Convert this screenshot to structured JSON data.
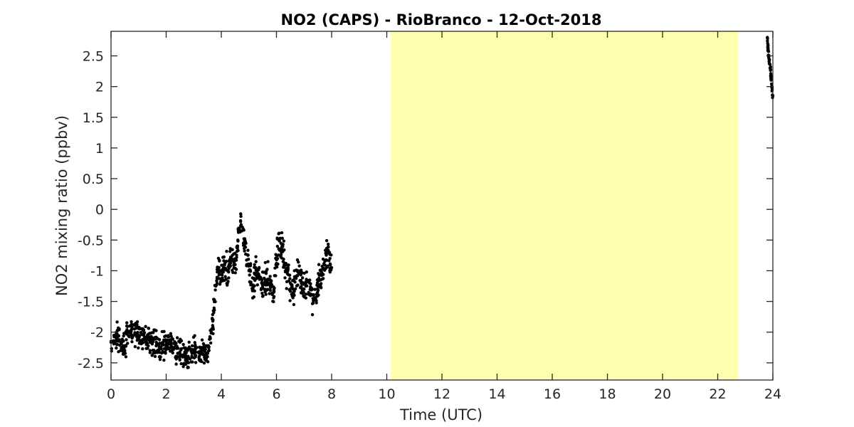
{
  "chart_data": {
    "type": "scatter",
    "title": "NO2 (CAPS) - RioBranco - 12-Oct-2018",
    "xlabel": "Time (UTC)",
    "ylabel": "NO2 mixing ratio (ppbv)",
    "xlim": [
      0,
      24
    ],
    "ylim": [
      -2.78,
      2.9
    ],
    "xticks": [
      0,
      2,
      4,
      6,
      8,
      10,
      12,
      14,
      16,
      18,
      20,
      22,
      24
    ],
    "yticks": [
      -2.5,
      -2,
      -1.5,
      -1,
      -0.5,
      0,
      0.5,
      1,
      1.5,
      2,
      2.5
    ],
    "xtick_labels": [
      "0",
      "2",
      "4",
      "6",
      "8",
      "10",
      "12",
      "14",
      "16",
      "18",
      "20",
      "22",
      "24"
    ],
    "ytick_labels": [
      "-2.5",
      "-2",
      "-1.5",
      "-1",
      "-0.5",
      "0",
      "0.5",
      "1",
      "1.5",
      "2",
      "2.5"
    ],
    "grid": false,
    "marker_color": "#000000",
    "shaded_region": {
      "x": [
        10.15,
        22.75
      ],
      "color": "#ffffb0"
    },
    "series": [
      {
        "x": [
          0.0,
          0.25,
          0.5,
          0.6,
          0.75,
          1.0,
          1.25,
          1.5,
          1.75,
          2.0,
          2.25,
          2.5,
          2.75,
          3.0,
          3.25,
          3.5,
          3.6,
          3.7,
          3.8,
          3.9,
          4.0,
          4.1,
          4.25,
          4.4,
          4.5,
          4.6,
          4.7,
          4.75,
          4.85,
          5.0,
          5.15,
          5.25,
          5.4,
          5.5,
          5.6,
          5.75,
          5.9,
          6.0,
          6.1,
          6.2,
          6.3,
          6.4,
          6.5,
          6.6,
          6.75,
          6.9,
          7.0,
          7.1,
          7.25,
          7.4,
          7.5,
          7.6,
          7.75,
          7.85,
          8.0
        ],
        "y": [
          -2.15,
          -2.05,
          -2.3,
          -2.0,
          -1.95,
          -2.05,
          -2.1,
          -2.15,
          -2.25,
          -2.2,
          -2.25,
          -2.35,
          -2.4,
          -2.3,
          -2.35,
          -2.4,
          -2.1,
          -1.8,
          -1.25,
          -1.0,
          -1.15,
          -0.9,
          -1.0,
          -0.75,
          -0.9,
          -0.5,
          -0.2,
          -0.35,
          -0.6,
          -1.0,
          -1.25,
          -0.95,
          -1.1,
          -1.25,
          -1.15,
          -1.2,
          -1.35,
          -0.8,
          -0.5,
          -0.6,
          -0.9,
          -1.05,
          -1.2,
          -1.3,
          -1.0,
          -1.2,
          -1.3,
          -1.15,
          -1.4,
          -1.45,
          -1.25,
          -1.15,
          -0.85,
          -0.7,
          -0.95
        ]
      },
      {
        "x": [
          23.8,
          23.83,
          23.86,
          23.9,
          23.93,
          23.96,
          24.0
        ],
        "y": [
          2.8,
          2.6,
          2.45,
          2.3,
          2.15,
          2.0,
          1.85
        ]
      }
    ]
  }
}
